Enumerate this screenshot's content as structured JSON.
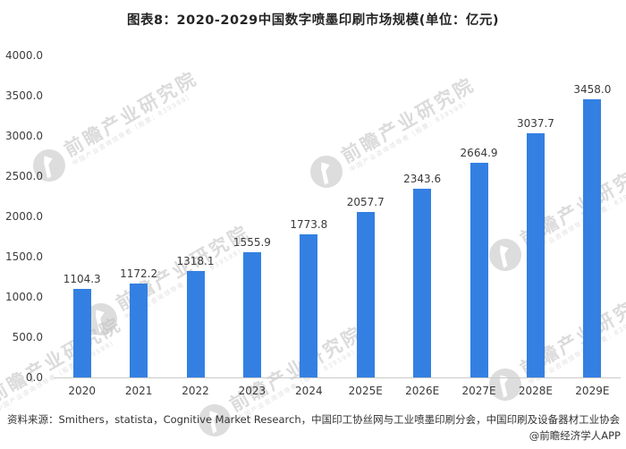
{
  "title": "图表8：2020-2029中国数字喷墨印刷市场规模(单位：亿元)",
  "chart_data": {
    "type": "bar",
    "title": "图表8：2020-2029中国数字喷墨印刷市场规模(单位：亿元)",
    "categories": [
      "2020",
      "2021",
      "2022",
      "2023",
      "2024",
      "2025E",
      "2026E",
      "2027E",
      "2028E",
      "2029E"
    ],
    "values": [
      1104.3,
      1172.2,
      1318.1,
      1555.9,
      1773.8,
      2057.7,
      2343.6,
      2664.9,
      3037.7,
      3458.0
    ],
    "data_labels": [
      "1104.3",
      "1172.2",
      "1318.1",
      "1555.9",
      "1773.8",
      "2057.7",
      "2343.6",
      "2664.9",
      "3037.7",
      "3458.0"
    ],
    "xlabel": "",
    "ylabel": "",
    "ylim": [
      0,
      4000
    ],
    "ytick_step": 500,
    "yticks": [
      "4000.0",
      "3500.0",
      "3000.0",
      "2500.0",
      "2000.0",
      "1500.0",
      "1000.0",
      "500.0",
      "0.0"
    ],
    "grid": false,
    "legend": false,
    "bar_color": "#3380E2",
    "axis_line_color": "#c9c9c9",
    "unit": "亿元"
  },
  "footer": {
    "source": "资料来源：Smithers，statista，Cognitive Market Research，中国印工协丝网与工业喷墨印刷分会，中国印刷及设备器材工业协会",
    "credit": "@前瞻经济学人APP"
  },
  "watermark": {
    "logo_icon": "qianzhan-sphere-logo",
    "text": "前瞻产业研究院",
    "subtext": "中国产业咨询领导者（股票：839599）"
  }
}
